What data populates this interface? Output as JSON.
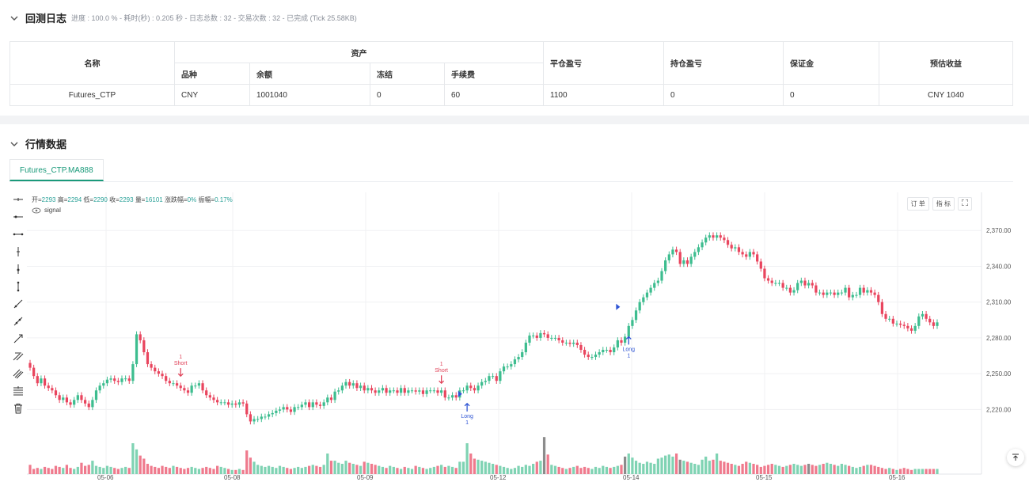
{
  "log": {
    "title": "回测日志",
    "meta": "进度 : 100.0 % - 耗时(秒) : 0.205 秒 - 日志总数 : 32 - 交易次数 : 32 - 已完成 (Tick 25.58KB)",
    "table": {
      "h_name": "名称",
      "h_assets": "资产",
      "h_variety": "品种",
      "h_balance": "余额",
      "h_frozen": "冻结",
      "h_fee": "手续费",
      "h_close_pnl": "平仓盈亏",
      "h_hold_pnl": "持仓盈亏",
      "h_margin": "保证金",
      "h_est": "预估收益",
      "row": {
        "name": "Futures_CTP",
        "variety": "CNY",
        "balance": "1001040",
        "frozen": "0",
        "fee": "60",
        "close_pnl": "1100",
        "hold_pnl": "0",
        "margin": "0",
        "est": "CNY 1040"
      }
    }
  },
  "market": {
    "title": "行情数据",
    "tab": "Futures_CTP.MA888",
    "ohlc": {
      "open_label": "开=",
      "open": "2293",
      "high_label": "高=",
      "high": "2294",
      "low_label": "低=",
      "low": "2290",
      "close_label": "收=",
      "close": "2293",
      "vol_label": "量=",
      "vol": "16101",
      "chg_label": "涨跌幅=",
      "chg": "0%",
      "amp_label": "振幅=",
      "amp": "0.17%"
    },
    "signal_label": "signal",
    "buttons": {
      "order": "订 单",
      "indicator": "指 标"
    }
  },
  "chart_data": {
    "type": "candlestick",
    "y_ticks": [
      "2,370.00",
      "2,340.00",
      "2,310.00",
      "2,280.00",
      "2,250.00",
      "2,220.00"
    ],
    "y_tick_values": [
      2370,
      2340,
      2310,
      2280,
      2250,
      2220
    ],
    "x_ticks": [
      "05-06",
      "05-08",
      "05-09",
      "05-12",
      "05-14",
      "05-15",
      "05-16"
    ],
    "ylim": [
      2203,
      2402
    ],
    "annotations": [
      {
        "text": "1",
        "text2": "Short",
        "dir": "down",
        "bar": 41,
        "price": 2248,
        "color": "#e0445a"
      },
      {
        "text": "1",
        "text2": "Short",
        "dir": "down",
        "bar": 112,
        "price": 2242,
        "color": "#e0445a"
      },
      {
        "text": "Long",
        "text2": "1",
        "dir": "up",
        "bar": 119,
        "price": 2225,
        "color": "#2f55d4"
      },
      {
        "text": "Long",
        "text2": "1",
        "dir": "up",
        "bar": 163,
        "price": 2281,
        "color": "#2f55d4"
      }
    ],
    "closes": [
      2255,
      2248,
      2242,
      2246,
      2240,
      2238,
      2236,
      2232,
      2228,
      2230,
      2226,
      2224,
      2228,
      2232,
      2228,
      2225,
      2222,
      2228,
      2236,
      2240,
      2242,
      2245,
      2246,
      2244,
      2243,
      2246,
      2246,
      2244,
      2258,
      2283,
      2278,
      2268,
      2258,
      2255,
      2252,
      2250,
      2248,
      2244,
      2242,
      2242,
      2240,
      2238,
      2236,
      2234,
      2240,
      2240,
      2242,
      2236,
      2232,
      2230,
      2228,
      2226,
      2226,
      2226,
      2224,
      2225,
      2224,
      2226,
      2225,
      2216,
      2210,
      2212,
      2212,
      2214,
      2214,
      2216,
      2217,
      2219,
      2220,
      2222,
      2220,
      2218,
      2222,
      2222,
      2224,
      2226,
      2222,
      2226,
      2224,
      2223,
      2226,
      2230,
      2228,
      2235,
      2236,
      2240,
      2243,
      2240,
      2242,
      2238,
      2240,
      2236,
      2238,
      2236,
      2234,
      2236,
      2238,
      2234,
      2236,
      2236,
      2234,
      2238,
      2234,
      2236,
      2236,
      2235,
      2236,
      2233,
      2236,
      2236,
      2236,
      2234,
      2236,
      2230,
      2230,
      2232,
      2230,
      2236,
      2236,
      2240,
      2238,
      2236,
      2240,
      2243,
      2244,
      2248,
      2248,
      2244,
      2252,
      2256,
      2256,
      2258,
      2262,
      2264,
      2268,
      2276,
      2282,
      2282,
      2280,
      2284,
      2283,
      2280,
      2280,
      2280,
      2278,
      2276,
      2276,
      2275,
      2276,
      2274,
      2270,
      2266,
      2264,
      2264,
      2266,
      2268,
      2270,
      2270,
      2268,
      2272,
      2278,
      2276,
      2281,
      2290,
      2295,
      2303,
      2310,
      2314,
      2318,
      2322,
      2326,
      2328,
      2336,
      2345,
      2350,
      2354,
      2352,
      2342,
      2345,
      2342,
      2348,
      2352,
      2356,
      2360,
      2364,
      2366,
      2364,
      2366,
      2364,
      2362,
      2358,
      2355,
      2356,
      2352,
      2350,
      2348,
      2352,
      2350,
      2344,
      2338,
      2330,
      2328,
      2326,
      2326,
      2326,
      2322,
      2322,
      2318,
      2320,
      2326,
      2328,
      2324,
      2326,
      2324,
      2318,
      2318,
      2316,
      2318,
      2318,
      2316,
      2318,
      2318,
      2322,
      2314,
      2316,
      2316,
      2322,
      2318,
      2320,
      2318,
      2316,
      2310,
      2300,
      2296,
      2296,
      2292,
      2292,
      2291,
      2290,
      2288,
      2286,
      2290,
      2298,
      2300,
      2296,
      2293,
      2290,
      2293
    ],
    "volumes": [
      9,
      5,
      6,
      5,
      7,
      6,
      5,
      8,
      7,
      6,
      9,
      6,
      5,
      7,
      11,
      8,
      9,
      13,
      8,
      7,
      6,
      8,
      7,
      6,
      5,
      6,
      7,
      6,
      30,
      24,
      18,
      15,
      10,
      8,
      7,
      6,
      8,
      7,
      6,
      8,
      7,
      6,
      5,
      6,
      7,
      6,
      5,
      6,
      7,
      6,
      5,
      8,
      7,
      6,
      5,
      4,
      4,
      5,
      4,
      23,
      16,
      12,
      9,
      8,
      7,
      8,
      7,
      6,
      8,
      7,
      6,
      5,
      6,
      7,
      6,
      7,
      8,
      9,
      8,
      7,
      9,
      20,
      13,
      13,
      11,
      10,
      13,
      11,
      10,
      9,
      8,
      12,
      11,
      10,
      9,
      8,
      7,
      6,
      8,
      7,
      6,
      5,
      7,
      6,
      5,
      8,
      7,
      6,
      5,
      6,
      7,
      8,
      9,
      7,
      8,
      7,
      6,
      12,
      12,
      30,
      20,
      15,
      14,
      13,
      12,
      11,
      10,
      9,
      8,
      7,
      6,
      5,
      6,
      8,
      7,
      9,
      8,
      10,
      12,
      13,
      36,
      19,
      9,
      8,
      7,
      6,
      5,
      6,
      7,
      8,
      6,
      7,
      6,
      5,
      7,
      6,
      8,
      7,
      6,
      7,
      8,
      9,
      17,
      20,
      16,
      13,
      11,
      10,
      12,
      11,
      10,
      15,
      16,
      18,
      19,
      17,
      20,
      14,
      13,
      12,
      11,
      10,
      9,
      14,
      17,
      13,
      14,
      20,
      13,
      12,
      11,
      10,
      9,
      8,
      10,
      12,
      11,
      10,
      9,
      7,
      8,
      9,
      10,
      9,
      8,
      7,
      8,
      9,
      10,
      9,
      8,
      9,
      10,
      9,
      8,
      9,
      10,
      11,
      10,
      9,
      8,
      10,
      9,
      8,
      7,
      6,
      7,
      8,
      9,
      9,
      8,
      7,
      6,
      5,
      6,
      5,
      4,
      5,
      6,
      5,
      4,
      5
    ],
    "gray_volume_bars": [
      140,
      162,
      177,
      212
    ]
  }
}
